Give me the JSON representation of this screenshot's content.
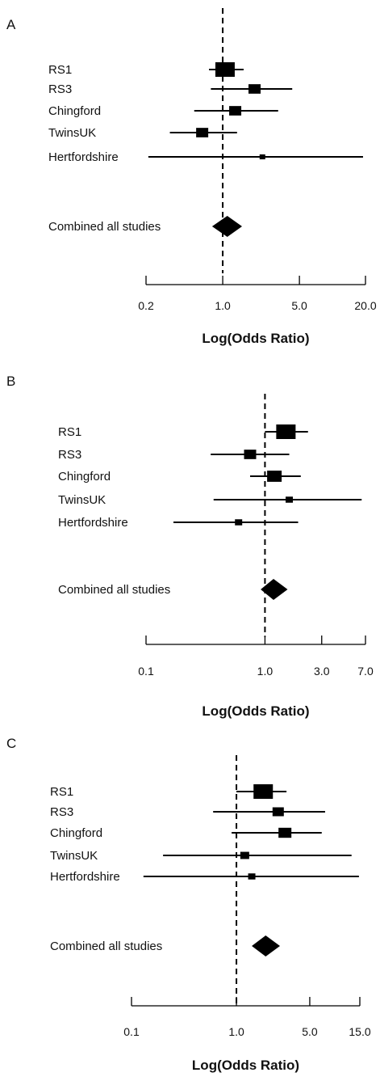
{
  "chart_data": [
    {
      "type": "forest",
      "panel": "A",
      "xlabel": "Log(Odds Ratio)",
      "scale": "log",
      "xlim": [
        0.2,
        20.0
      ],
      "ticks": [
        "0.2",
        "1.0",
        "5.0",
        "20.0"
      ],
      "reference_line": 1.0,
      "studies": [
        {
          "label": "RS1",
          "or": 1.05,
          "lo": 0.75,
          "hi": 1.55,
          "weight": 1.0
        },
        {
          "label": "RS3",
          "or": 1.95,
          "lo": 0.78,
          "hi": 4.3,
          "weight": 0.55
        },
        {
          "label": "Chingford",
          "or": 1.3,
          "lo": 0.55,
          "hi": 3.2,
          "weight": 0.55
        },
        {
          "label": "TwinsUK",
          "or": 0.65,
          "lo": 0.33,
          "hi": 1.35,
          "weight": 0.55
        },
        {
          "label": "Hertfordshire",
          "or": 2.3,
          "lo": 0.21,
          "hi": 19.0,
          "weight": 0.15
        }
      ],
      "combined": {
        "label": "Combined all studies",
        "or": 1.1,
        "lo": 0.8,
        "hi": 1.5
      }
    },
    {
      "type": "forest",
      "panel": "B",
      "xlabel": "Log(Odds Ratio)",
      "scale": "log",
      "xlim": [
        0.1,
        7.0
      ],
      "ticks": [
        "0.1",
        "1.0",
        "3.0",
        "7.0"
      ],
      "reference_line": 1.0,
      "studies": [
        {
          "label": "RS1",
          "or": 1.5,
          "lo": 1.0,
          "hi": 2.3,
          "weight": 1.0
        },
        {
          "label": "RS3",
          "or": 0.75,
          "lo": 0.35,
          "hi": 1.6,
          "weight": 0.55
        },
        {
          "label": "Chingford",
          "or": 1.2,
          "lo": 0.75,
          "hi": 2.0,
          "weight": 0.7
        },
        {
          "label": "TwinsUK",
          "or": 1.6,
          "lo": 0.37,
          "hi": 6.5,
          "weight": 0.25
        },
        {
          "label": "Hertfordshire",
          "or": 0.6,
          "lo": 0.17,
          "hi": 1.9,
          "weight": 0.25
        }
      ],
      "combined": {
        "label": "Combined all studies",
        "or": 1.18,
        "lo": 0.92,
        "hi": 1.55
      }
    },
    {
      "type": "forest",
      "panel": "C",
      "xlabel": "Log(Odds Ratio)",
      "scale": "log",
      "xlim": [
        0.1,
        15.0
      ],
      "ticks": [
        "0.1",
        "1.0",
        "5.0",
        "15.0"
      ],
      "reference_line": 1.0,
      "studies": [
        {
          "label": "RS1",
          "or": 1.8,
          "lo": 1.0,
          "hi": 3.0,
          "weight": 1.0
        },
        {
          "label": "RS3",
          "or": 2.5,
          "lo": 0.6,
          "hi": 7.0,
          "weight": 0.5
        },
        {
          "label": "Chingford",
          "or": 2.9,
          "lo": 0.9,
          "hi": 6.5,
          "weight": 0.6
        },
        {
          "label": "TwinsUK",
          "or": 1.2,
          "lo": 0.2,
          "hi": 12.5,
          "weight": 0.35
        },
        {
          "label": "Hertfordshire",
          "or": 1.4,
          "lo": 0.13,
          "hi": 25.0,
          "weight": 0.25
        }
      ],
      "combined": {
        "label": "Combined all studies",
        "or": 1.9,
        "lo": 1.4,
        "hi": 2.6
      }
    }
  ]
}
